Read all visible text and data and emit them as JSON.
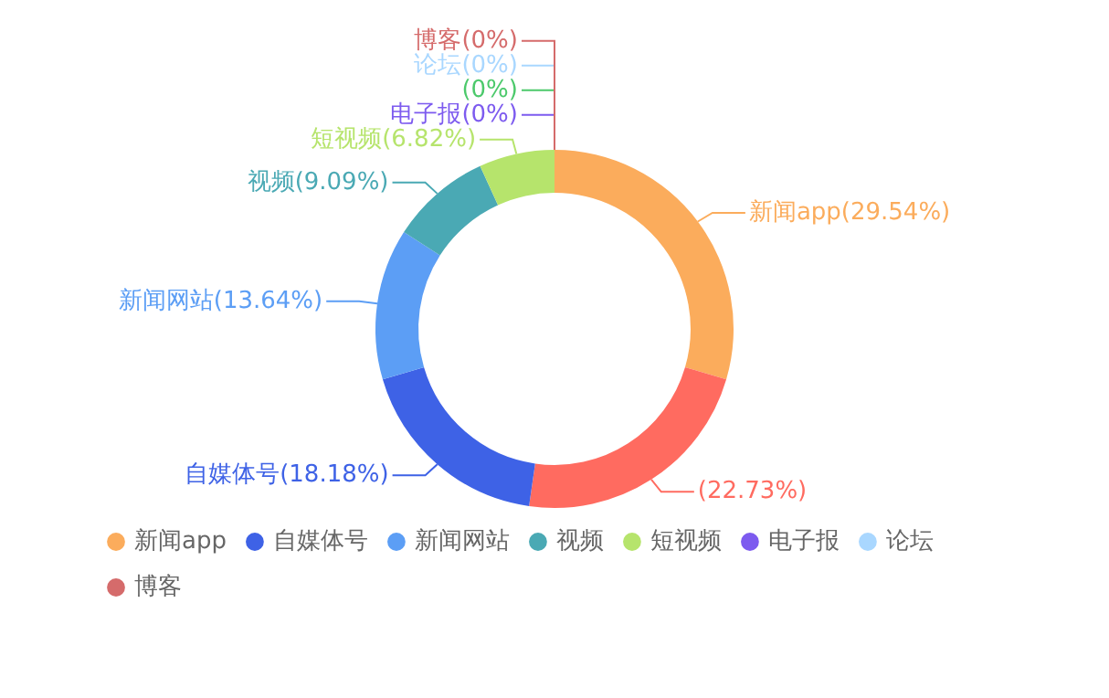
{
  "chart_data": {
    "type": "donut",
    "categories": [
      "新闻app",
      null,
      "自媒体号",
      "新闻网站",
      "视频",
      "短视频",
      "电子报",
      null,
      "论坛",
      "博客"
    ],
    "values": [
      29.54,
      22.73,
      18.18,
      13.64,
      9.09,
      6.82,
      0,
      0,
      0,
      0
    ],
    "value_labels": [
      "(29.54%)",
      "(22.73%)",
      "(18.18%)",
      "(13.64%)",
      "(9.09%)",
      "(6.82%)",
      "(0%)",
      "(0%)",
      "(0%)",
      "(0%)"
    ],
    "colors": [
      "#fbac5c",
      "#ff6b60",
      "#3e62e6",
      "#5c9ef5",
      "#4aa9b4",
      "#b6e46c",
      "#7d5bef",
      "#4cc96b",
      "#a9d7ff",
      "#d56b6b"
    ],
    "legend": "bottom"
  }
}
